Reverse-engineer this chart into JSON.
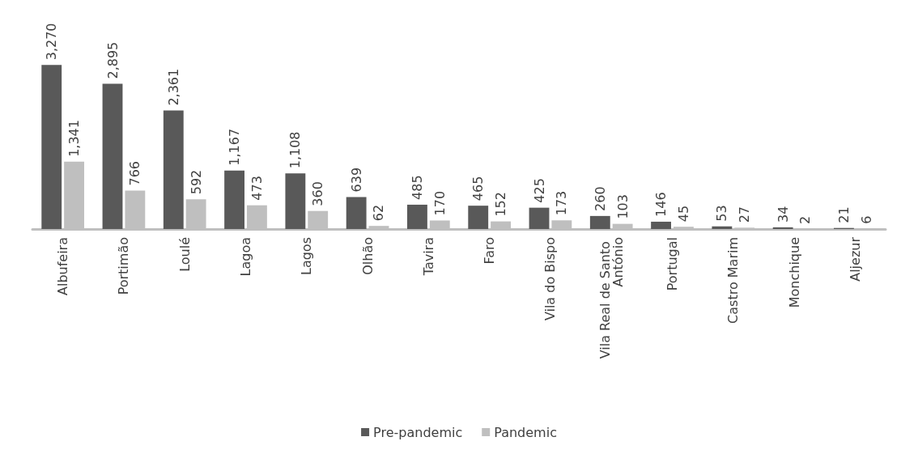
{
  "chart_data": {
    "type": "bar",
    "categories": [
      "Albufeira",
      "Portimão",
      "Loulé",
      "Lagoa",
      "Lagos",
      "Olhão",
      "Tavira",
      "Faro",
      "Vila do Bispo",
      "Vila Real de Santo António",
      "Portugal",
      "Castro Marim",
      "Monchique",
      "Aljezur"
    ],
    "series": [
      {
        "name": "Pre-pandemic",
        "color": "#595959",
        "values": [
          3270,
          2895,
          2361,
          1167,
          1108,
          639,
          485,
          465,
          425,
          260,
          146,
          53,
          34,
          21
        ],
        "value_labels": [
          "3,270",
          "2,895",
          "2,361",
          "1,167",
          "1,108",
          "639",
          "485",
          "465",
          "425",
          "260",
          "146",
          "53",
          "34",
          "21"
        ]
      },
      {
        "name": "Pandemic",
        "color": "#bfbfbf",
        "values": [
          1341,
          766,
          592,
          473,
          360,
          62,
          170,
          152,
          173,
          103,
          45,
          27,
          2,
          6
        ],
        "value_labels": [
          "1,341",
          "766",
          "592",
          "473",
          "360",
          "62",
          "170",
          "152",
          "173",
          "103",
          "45",
          "27",
          "2",
          "6"
        ]
      }
    ],
    "legend": "bottom",
    "tick_labels": "x"
  }
}
